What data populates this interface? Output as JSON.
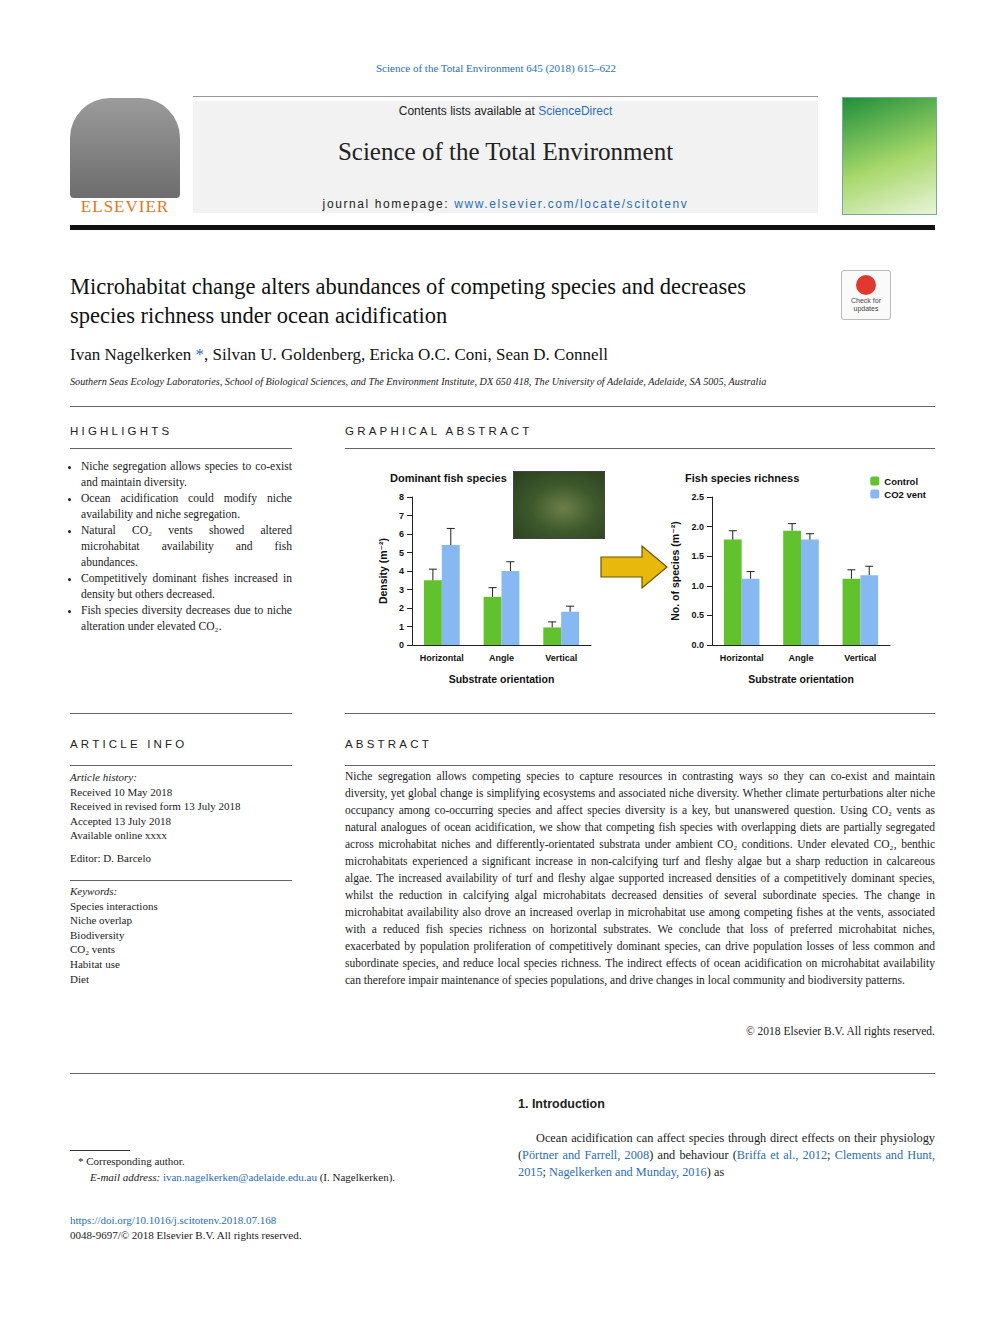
{
  "header": {
    "citation": "Science of the Total Environment 645 (2018) 615–622",
    "contents": "Contents lists available at ScienceDirect",
    "contents_link": "ScienceDirect",
    "journal": "Science of the Total Environment",
    "homepage": "journal homepage: www.elsevier.com/locate/scitotenv",
    "homepage_url": "www.elsevier.com/locate/scitotenv",
    "publisher": "ELSEVIER",
    "badge": "Check for updates"
  },
  "article": {
    "title": "Microhabitat change alters abundances of competing species and decreases species richness under ocean acidification",
    "authors": "Ivan Nagelkerken *, Silvan U. Goldenberg, Ericka O.C. Coni, Sean D. Connell",
    "corresponding_mark": "*",
    "affiliation": "Southern Seas Ecology Laboratories, School of Biological Sciences, and The Environment Institute, DX 650 418, The University of Adelaide, Adelaide, SA 5005, Australia"
  },
  "highlights": {
    "heading": "HIGHLIGHTS",
    "items": [
      "Niche segregation allows species to co-exist and maintain diversity.",
      "Ocean acidification could modify niche availability and niche segregation.",
      "Natural CO₂ vents showed altered microhabitat availability and fish abundances.",
      "Competitively dominant fishes increased in density but others decreased.",
      "Fish species diversity decreases due to niche alteration under elevated CO₂."
    ]
  },
  "graphical_abstract": {
    "heading": "GRAPHICAL ABSTRACT"
  },
  "chart_data": [
    {
      "type": "bar",
      "title": "Dominant fish species",
      "x_label": "Substrate orientation",
      "y_label": "Density (m⁻²)",
      "categories": [
        "Horizontal",
        "Angle",
        "Vertical"
      ],
      "series": [
        {
          "color": "#62c22e",
          "values": [
            3.5,
            2.6,
            0.95
          ],
          "errors": [
            0.6,
            0.5,
            0.3
          ]
        },
        {
          "color": "#86b9f2",
          "values": [
            5.4,
            4.0,
            1.8
          ],
          "errors": [
            0.9,
            0.5,
            0.3
          ]
        }
      ],
      "ylim": [
        0,
        8
      ],
      "yticks": [
        0,
        1,
        2,
        3,
        4,
        5,
        6,
        7,
        8
      ],
      "grid": false
    },
    {
      "type": "bar",
      "title": "Fish species richness",
      "x_label": "Substrate orientation",
      "y_label": "No. of species (m⁻²)",
      "categories": [
        "Horizontal",
        "Angle",
        "Vertical"
      ],
      "series": [
        {
          "name": "Control",
          "color": "#62c22e",
          "values": [
            1.78,
            1.93,
            1.12
          ],
          "errors": [
            0.15,
            0.12,
            0.15
          ]
        },
        {
          "name": "CO2 vent",
          "color": "#86b9f2",
          "values": [
            1.12,
            1.78,
            1.18
          ],
          "errors": [
            0.12,
            0.1,
            0.15
          ]
        }
      ],
      "ylim": [
        0,
        2.5
      ],
      "yticks": [
        {
          "value": 0,
          "label": "0.0"
        },
        0.5,
        {
          "value": 1,
          "label": "1.0"
        },
        1.5,
        {
          "value": 2,
          "label": "2.0"
        },
        2.5
      ],
      "grid": false,
      "legend": "upper right"
    }
  ],
  "article_info": {
    "heading": "ARTICLE INFO",
    "history_heading": "Article history:",
    "history": [
      "Received 10 May 2018",
      "Received in revised form 13 July 2018",
      "Accepted 13 July 2018",
      "Available online xxxx"
    ],
    "editor": "Editor: D. Barcelo",
    "keywords_heading": "Keywords:",
    "keywords": [
      "Species interactions",
      "Niche overlap",
      "Biodiversity",
      "CO₂ vents",
      "Habitat use",
      "Diet"
    ]
  },
  "abstract": {
    "heading": "ABSTRACT",
    "text": "Niche segregation allows competing species to capture resources in contrasting ways so they can co-exist and maintain diversity, yet global change is simplifying ecosystems and associated niche diversity. Whether climate perturbations alter niche occupancy among co-occurring species and affect species diversity is a key, but unanswered question. Using CO₂ vents as natural analogues of ocean acidification, we show that competing fish species with overlapping diets are partially segregated across microhabitat niches and differently-orientated substrata under ambient CO₂ conditions. Under elevated CO₂, benthic microhabitats experienced a significant increase in non-calcifying turf and fleshy algae but a sharp reduction in calcareous algae. The increased availability of turf and fleshy algae supported increased densities of a competitively dominant species, whilst the reduction in calcifying algal microhabitats decreased densities of several subordinate species. The change in microhabitat availability also drove an increased overlap in microhabitat use among competing fishes at the vents, associated with a reduced fish species richness on horizontal substrates. We conclude that loss of preferred microhabitat niches, exacerbated by population proliferation of competitively dominant species, can drive population losses of less common and subordinate species, and reduce local species richness. The indirect effects of ocean acidification on microhabitat availability can therefore impair maintenance of species populations, and drive changes in local community and biodiversity patterns.",
    "copyright": "© 2018 Elsevier B.V. All rights reserved."
  },
  "introduction": {
    "heading": "1. Introduction",
    "text": "Ocean acidification can affect species through direct effects on their physiology (Pörtner and Farrell, 2008) and behaviour (Briffa et al., 2012; Clements and Hunt, 2015; Nagelkerken and Munday, 2016) as",
    "citations": [
      "Pörtner and Farrell, 2008",
      "Briffa et al., 2012",
      "Clements and Hunt, 2015",
      "Nagelkerken and Munday, 2016"
    ]
  },
  "footnote": {
    "corresponding": "* Corresponding author.",
    "email_label": "E-mail address:",
    "email_line": "ivan.nagelkerken@adelaide.edu.au (I. Nagelkerken).",
    "email": "ivan.nagelkerken@adelaide.edu.au"
  },
  "footer": {
    "doi": "https://doi.org/10.1016/j.scitotenv.2018.07.168",
    "issn": "0048-9697/© 2018 Elsevier B.V. All rights reserved."
  }
}
